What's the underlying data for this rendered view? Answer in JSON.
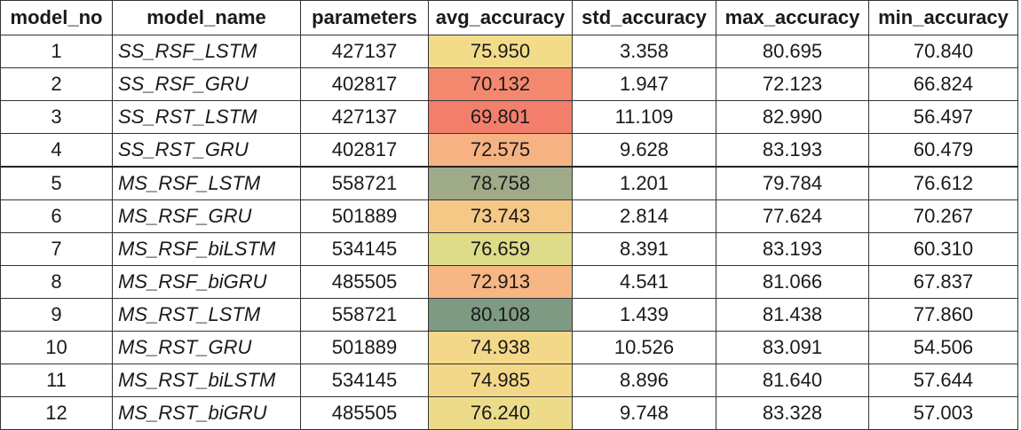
{
  "table": {
    "headers": [
      "model_no",
      "model_name",
      "parameters",
      "avg_accuracy",
      "std_accuracy",
      "max_accuracy",
      "min_accuracy"
    ],
    "rows": [
      {
        "model_no": "1",
        "model_name": "SS_RSF_LSTM",
        "parameters": "427137",
        "avg_accuracy": "75.950",
        "std_accuracy": "3.358",
        "max_accuracy": "80.695",
        "min_accuracy": "70.840",
        "avg_color": "#f2dc8a"
      },
      {
        "model_no": "2",
        "model_name": "SS_RSF_GRU",
        "parameters": "402817",
        "avg_accuracy": "70.132",
        "std_accuracy": "1.947",
        "max_accuracy": "72.123",
        "min_accuracy": "66.824",
        "avg_color": "#f4886e"
      },
      {
        "model_no": "3",
        "model_name": "SS_RST_LSTM",
        "parameters": "427137",
        "avg_accuracy": "69.801",
        "std_accuracy": "11.109",
        "max_accuracy": "82.990",
        "min_accuracy": "56.497",
        "avg_color": "#f37e6c"
      },
      {
        "model_no": "4",
        "model_name": "SS_RST_GRU",
        "parameters": "402817",
        "avg_accuracy": "72.575",
        "std_accuracy": "9.628",
        "max_accuracy": "83.193",
        "min_accuracy": "60.479",
        "avg_color": "#f6b283"
      },
      {
        "model_no": "5",
        "model_name": "MS_RSF_LSTM",
        "parameters": "558721",
        "avg_accuracy": "78.758",
        "std_accuracy": "1.201",
        "max_accuracy": "79.784",
        "min_accuracy": "76.612",
        "avg_color": "#9fab88"
      },
      {
        "model_no": "6",
        "model_name": "MS_RSF_GRU",
        "parameters": "501889",
        "avg_accuracy": "73.743",
        "std_accuracy": "2.814",
        "max_accuracy": "77.624",
        "min_accuracy": "70.267",
        "avg_color": "#f5c886"
      },
      {
        "model_no": "7",
        "model_name": "MS_RSF_biLSTM",
        "parameters": "534145",
        "avg_accuracy": "76.659",
        "std_accuracy": "8.391",
        "max_accuracy": "83.193",
        "min_accuracy": "60.310",
        "avg_color": "#dedb8a"
      },
      {
        "model_no": "8",
        "model_name": "MS_RSF_biGRU",
        "parameters": "485505",
        "avg_accuracy": "72.913",
        "std_accuracy": "4.541",
        "max_accuracy": "81.066",
        "min_accuracy": "67.837",
        "avg_color": "#f6b784"
      },
      {
        "model_no": "9",
        "model_name": "MS_RST_LSTM",
        "parameters": "558721",
        "avg_accuracy": "80.108",
        "std_accuracy": "1.439",
        "max_accuracy": "81.438",
        "min_accuracy": "77.860",
        "avg_color": "#7f9a82"
      },
      {
        "model_no": "10",
        "model_name": "MS_RST_GRU",
        "parameters": "501889",
        "avg_accuracy": "74.938",
        "std_accuracy": "10.526",
        "max_accuracy": "83.091",
        "min_accuracy": "54.506",
        "avg_color": "#f3d889"
      },
      {
        "model_no": "11",
        "model_name": "MS_RST_biLSTM",
        "parameters": "534145",
        "avg_accuracy": "74.985",
        "std_accuracy": "8.896",
        "max_accuracy": "81.640",
        "min_accuracy": "57.644",
        "avg_color": "#f3d889"
      },
      {
        "model_no": "12",
        "model_name": "MS_RST_biGRU",
        "parameters": "485505",
        "avg_accuracy": "76.240",
        "std_accuracy": "9.748",
        "max_accuracy": "83.328",
        "min_accuracy": "57.003",
        "avg_color": "#ecdc8a"
      }
    ]
  }
}
